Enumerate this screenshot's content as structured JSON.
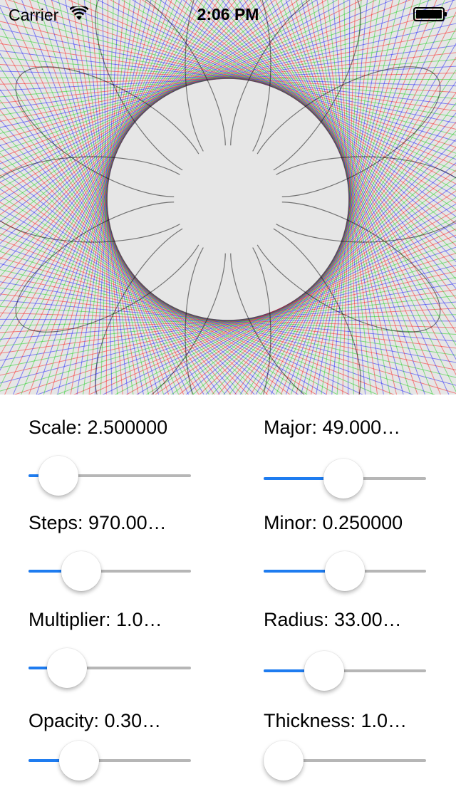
{
  "status_bar": {
    "carrier": "Carrier",
    "time": "2:06 PM",
    "wifi_icon": "wifi-icon",
    "battery_icon": "battery-icon"
  },
  "spirograph": {
    "colors": [
      "#ff0000",
      "#00cc00",
      "#0000ff",
      "#000000"
    ],
    "background": "#e6e6e6"
  },
  "controls": {
    "scale": {
      "label": "Scale: 2.500000",
      "value_fraction": 0.08
    },
    "major": {
      "label": "Major: 49.000…",
      "value_fraction": 0.49
    },
    "steps": {
      "label": "Steps: 970.00…",
      "value_fraction": 0.27
    },
    "minor": {
      "label": "Minor: 0.250000",
      "value_fraction": 0.5
    },
    "multiplier": {
      "label": "Multiplier: 1.0…",
      "value_fraction": 0.15
    },
    "radius": {
      "label": "Radius: 33.00…",
      "value_fraction": 0.33
    },
    "opacity": {
      "label": "Opacity: 0.30…",
      "value_fraction": 0.25
    },
    "thickness": {
      "label": "Thickness: 1.0…",
      "value_fraction": 0.0
    }
  }
}
